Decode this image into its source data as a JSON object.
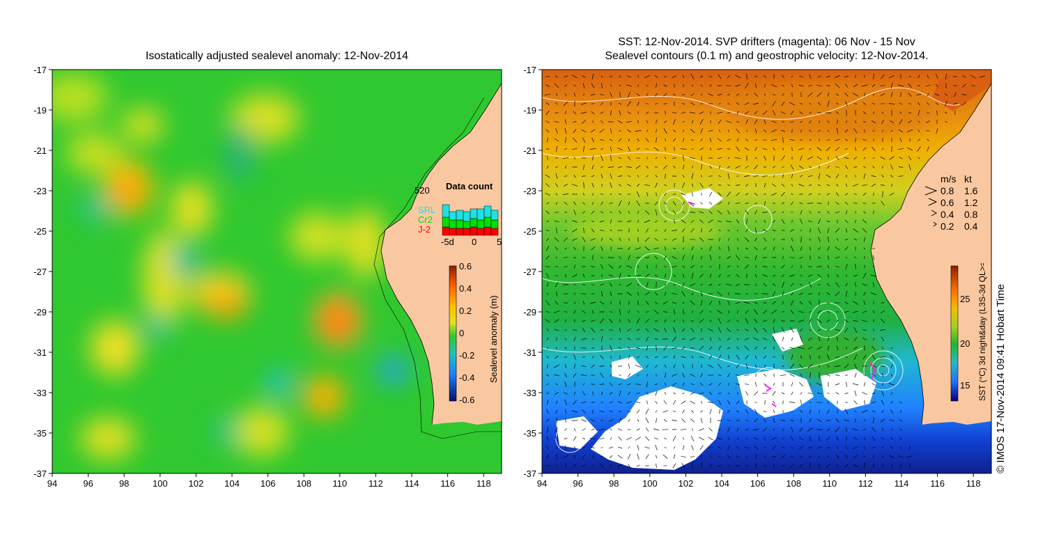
{
  "titles": {
    "left": "Isostatically adjusted sealevel anomaly: 12-Nov-2014",
    "right_line1": "SST: 12-Nov-2014. SVP drifters (magenta): 06 Nov - 15 Nov",
    "right_line2": "Sealevel contours (0.1 m) and geostrophic velocity: 12-Nov-2014."
  },
  "axes": {
    "lon_ticks": [
      "94",
      "96",
      "98",
      "100",
      "102",
      "104",
      "106",
      "108",
      "110",
      "112",
      "114",
      "116",
      "118"
    ],
    "lat_ticks": [
      "-17",
      "-19",
      "-21",
      "-23",
      "-25",
      "-27",
      "-29",
      "-31",
      "-33",
      "-35",
      "-37"
    ],
    "lon_range": [
      94,
      119
    ],
    "lat_range": [
      -37,
      -17
    ]
  },
  "data_count": {
    "title": "Data count",
    "max_label": "520",
    "satellites": [
      "SRL",
      "Cr2",
      "J-2"
    ],
    "satellite_colors": [
      "#20e0e0",
      "#00e000",
      "#ff0000"
    ],
    "x_ticks": [
      "-5d",
      "0",
      "5"
    ]
  },
  "sla_colorbar": {
    "label": "Sealevel anomaly (m)",
    "ticks": [
      "0.6",
      "0.4",
      "0.2",
      "0",
      "-0.2",
      "-0.4",
      "-0.6"
    ]
  },
  "sst_colorbar": {
    "label": "SST (°C) 3d night&day (L3S-3d QL>=2)",
    "ticks": [
      "25",
      "20",
      "15"
    ]
  },
  "velocity_legend": {
    "header_ms": "m/s",
    "header_kt": "kt",
    "rows": [
      {
        "ms": "0.8",
        "kt": "1.6"
      },
      {
        "ms": "0.6",
        "kt": "1.2"
      },
      {
        "ms": "0.4",
        "kt": "0.8"
      },
      {
        "ms": "0.2",
        "kt": "0.4"
      }
    ]
  },
  "colors": {
    "land": "#fac8a0",
    "ocean_base": "#40d040",
    "cloud": "#ffffff"
  },
  "copyright": "© IMOS 17-Nov-2014 09:41 Hobart Time"
}
